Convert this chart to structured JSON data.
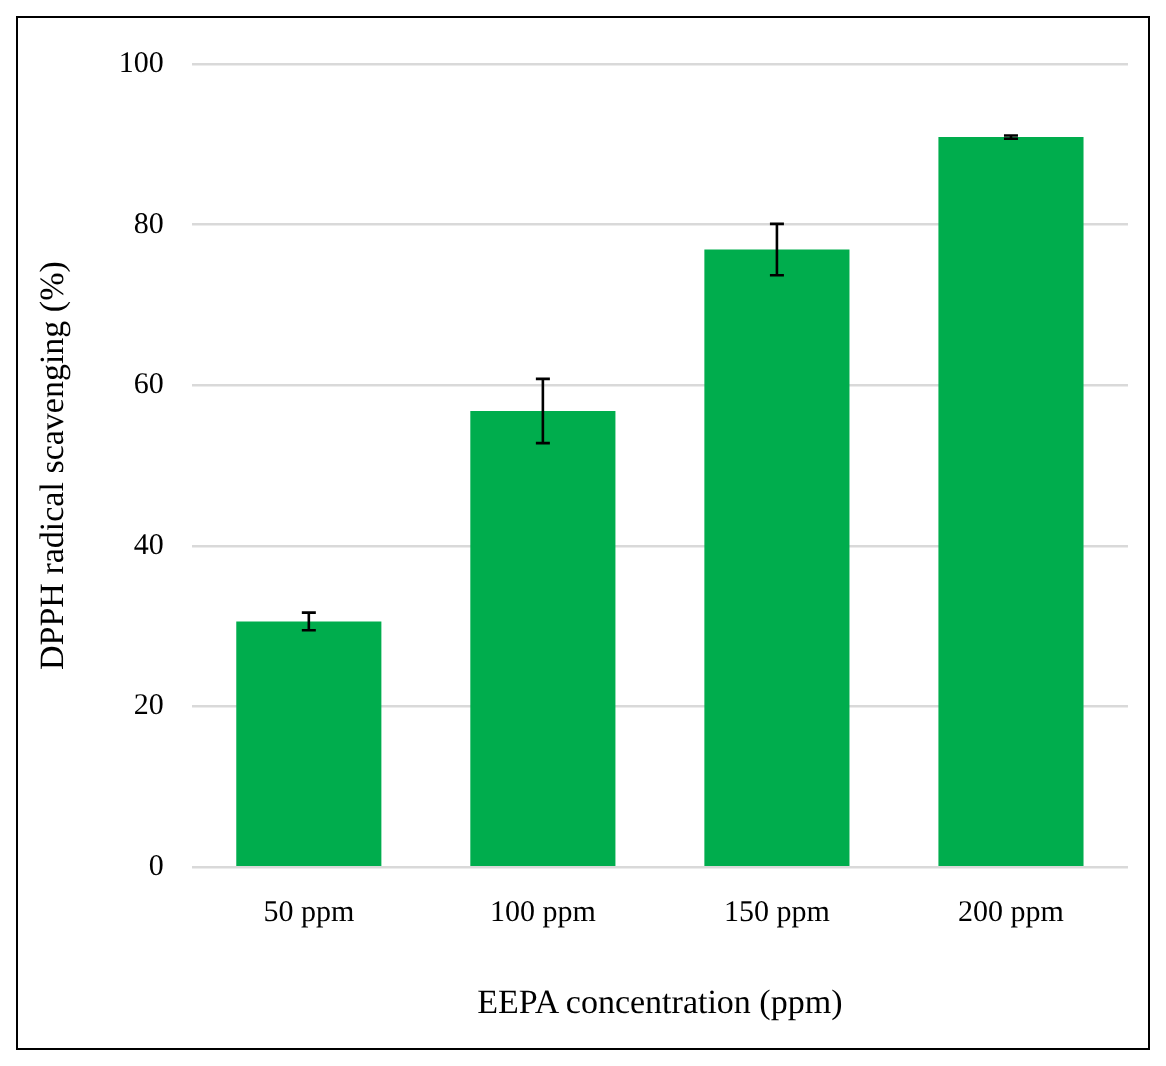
{
  "chart_data": {
    "type": "bar",
    "xlabel": "EEPA concentration (ppm)",
    "ylabel": "DPPH radical scavenging (%)",
    "categories": [
      "50 ppm",
      "100 ppm",
      "150 ppm",
      "200 ppm"
    ],
    "values": [
      30.6,
      56.8,
      76.9,
      90.9
    ],
    "errors": [
      1.1,
      4,
      3.2,
      0.2
    ],
    "color": "#00ad4d",
    "ylim": [
      0,
      100
    ],
    "yticks": [
      0,
      20,
      40,
      60,
      80,
      100
    ],
    "grid": "y",
    "legend": false
  }
}
